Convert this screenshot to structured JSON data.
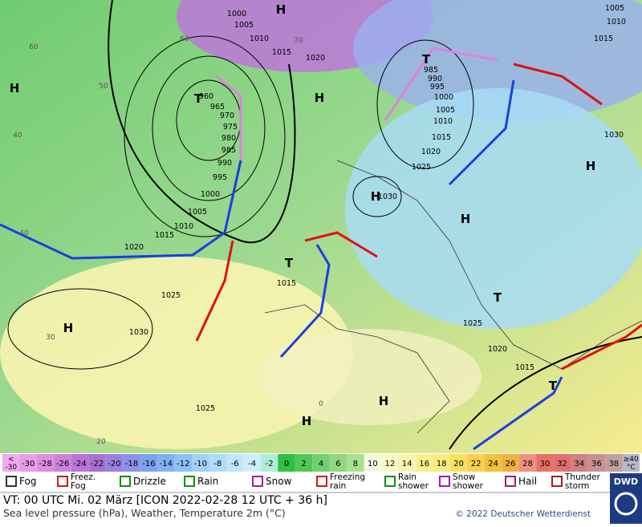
{
  "map": {
    "isobar_labels": [
      1000,
      1005,
      1010,
      1015,
      1020,
      960,
      965,
      970,
      975,
      980,
      985,
      990,
      995,
      1000,
      1005,
      1010,
      1015,
      1020,
      1025,
      1030,
      1025,
      1015,
      1030,
      985,
      990,
      995,
      1000,
      1005,
      1010,
      1015,
      1020,
      1025,
      1030,
      1005,
      1010,
      1015,
      1020,
      1015,
      1025
    ],
    "pressure_centers": [
      "H",
      "H",
      "H",
      "H",
      "H",
      "H",
      "H",
      "H",
      "H",
      "T",
      "T",
      "T",
      "T",
      "T"
    ],
    "temperature_labels": [
      60,
      50,
      40,
      40,
      30,
      20,
      60,
      70,
      0
    ]
  },
  "colorbar": {
    "low_label": [
      "<",
      "-30"
    ],
    "values": [
      -30,
      -28,
      -26,
      -24,
      -22,
      -20,
      -18,
      -16,
      -14,
      -12,
      -10,
      -8,
      -6,
      -4,
      -2,
      0,
      2,
      4,
      6,
      8,
      10,
      12,
      14,
      16,
      18,
      20,
      22,
      24,
      26,
      28,
      30,
      32,
      34,
      36,
      38
    ],
    "high_label": [
      "≥40",
      "°C"
    ],
    "colors": [
      "#f0a8f0",
      "#e89de8",
      "#dc8ee0",
      "#cc80dc",
      "#bb74d8",
      "#a970d4",
      "#9a80e0",
      "#8c90ea",
      "#7ea0f0",
      "#80b0f4",
      "#8cc0f8",
      "#a0d0fa",
      "#b0dcfc",
      "#c0e6fc",
      "#cceefc",
      "#b0ecd8",
      "#30c040",
      "#50c858",
      "#70d070",
      "#90d880",
      "#a8e090",
      "#f4f8e0",
      "#f8f8c8",
      "#f8f4b0",
      "#f8f090",
      "#f8ec80",
      "#f8e060",
      "#f8d050",
      "#f0c040",
      "#f0b040",
      "#f09080",
      "#e87060",
      "#e07070",
      "#d08080",
      "#c89090",
      "#c0a0a0",
      "#b8b8c8"
    ]
  },
  "legend": [
    "Fog",
    "Freez. Fog",
    "Drizzle",
    "Rain",
    "Snow",
    "Freezing rain",
    "Rain shower",
    "Snow shower",
    "Hail",
    "Thunder storm"
  ],
  "footer": {
    "valid_time": "VT: 00 UTC Mi.  02 März [ICON 2022-02-28  12 UTC + 36 h]",
    "description": "Sea level pressure (hPa), Weather, Temperature 2m (°C)",
    "copyright": "© 2022 Deutscher Wetterdienst",
    "logo": "DWD"
  }
}
